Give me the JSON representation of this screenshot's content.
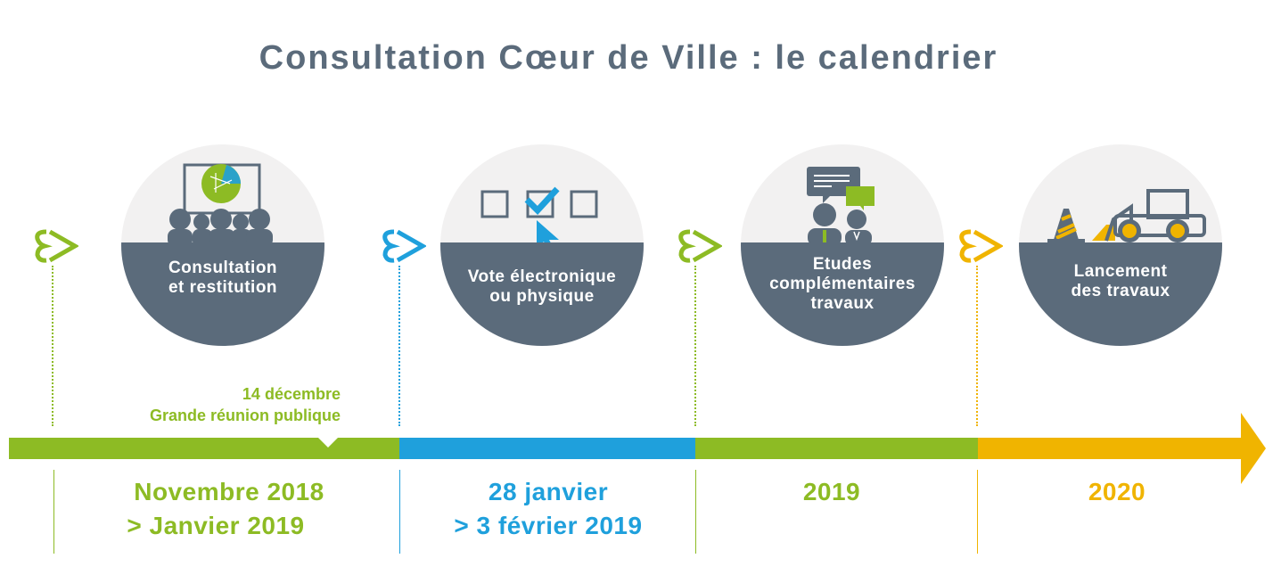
{
  "title": "Consultation Cœur de Ville : le calendrier",
  "colors": {
    "green": "#8dbb24",
    "blue": "#1fa0dc",
    "orange": "#f0b400",
    "slate": "#5b6b7b",
    "light": "#f2f1f1"
  },
  "steps": [
    {
      "label_lines": [
        "Consultation",
        "et restitution"
      ],
      "icon": "audience-presentation-icon",
      "marker_color": "#8dbb24"
    },
    {
      "label_lines": [
        "Vote électronique",
        "ou physique"
      ],
      "icon": "checkbox-vote-icon",
      "marker_color": "#1fa0dc"
    },
    {
      "label_lines": [
        "Etudes",
        "complémentaires",
        "travaux"
      ],
      "icon": "consultants-discussion-icon",
      "marker_color": "#8dbb24"
    },
    {
      "label_lines": [
        "Lancement",
        "des travaux"
      ],
      "icon": "construction-loader-icon",
      "marker_color": "#f0b400"
    }
  ],
  "event": {
    "date": "14 décembre",
    "label": "Grande réunion publique"
  },
  "periods": [
    {
      "lines": [
        "Novembre 2018",
        "> Janvier 2019"
      ],
      "color": "#8dbb24"
    },
    {
      "lines": [
        "28 janvier",
        "> 3 février 2019"
      ],
      "color": "#1fa0dc"
    },
    {
      "lines": [
        "2019"
      ],
      "color": "#8dbb24"
    },
    {
      "lines": [
        "2020"
      ],
      "color": "#f0b400"
    }
  ]
}
